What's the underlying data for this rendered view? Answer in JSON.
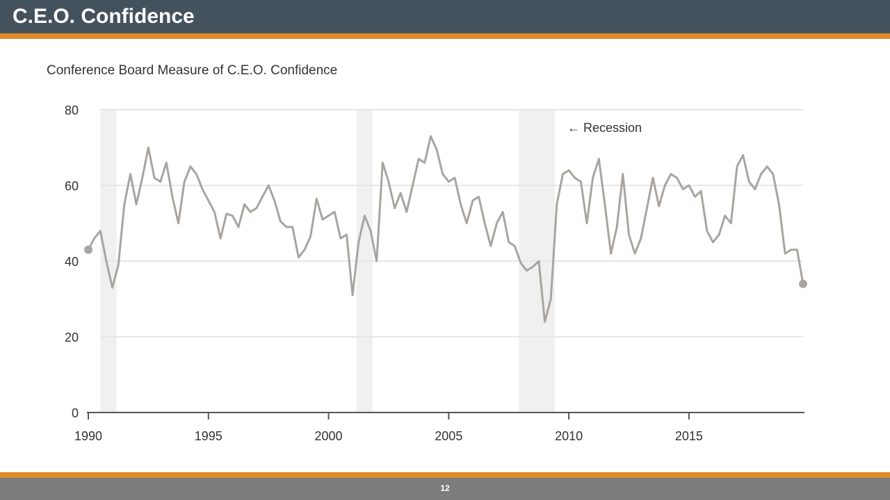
{
  "slide": {
    "title": "C.E.O. Confidence",
    "page_number": "12"
  },
  "colors": {
    "title_bar": "#44525e",
    "accent": "#dd8c27",
    "footer": "#7c7c7c",
    "line": "#a8a4a0",
    "recession_band": "#f0f0f0",
    "grid": "#e6e6e6",
    "axis": "#555555",
    "text": "#333333"
  },
  "chart_data": {
    "type": "line",
    "title": "Conference Board Measure of C.E.O. Confidence",
    "xlabel": "",
    "ylabel": "",
    "xlim": [
      1990,
      2019.75
    ],
    "ylim": [
      0,
      80
    ],
    "yticks": [
      0,
      20,
      40,
      60,
      80
    ],
    "xticks": [
      1990,
      1995,
      2000,
      2005,
      2010,
      2015
    ],
    "grid": true,
    "annotation": "← Recession",
    "recessions": [
      [
        1990.5,
        1991.17
      ],
      [
        2001.17,
        2001.83
      ],
      [
        2007.92,
        2009.42
      ]
    ],
    "series": [
      {
        "name": "C.E.O. Confidence",
        "x": [
          1990.0,
          1990.25,
          1990.5,
          1990.75,
          1991.0,
          1991.25,
          1991.5,
          1991.75,
          1992.0,
          1992.25,
          1992.5,
          1992.75,
          1993.0,
          1993.25,
          1993.5,
          1993.75,
          1994.0,
          1994.25,
          1994.5,
          1994.75,
          1995.0,
          1995.25,
          1995.5,
          1995.75,
          1996.0,
          1996.25,
          1996.5,
          1996.75,
          1997.0,
          1997.25,
          1997.5,
          1997.75,
          1998.0,
          1998.25,
          1998.5,
          1998.75,
          1999.0,
          1999.25,
          1999.5,
          1999.75,
          2000.0,
          2000.25,
          2000.5,
          2000.75,
          2001.0,
          2001.25,
          2001.5,
          2001.75,
          2002.0,
          2002.25,
          2002.5,
          2002.75,
          2003.0,
          2003.25,
          2003.5,
          2003.75,
          2004.0,
          2004.25,
          2004.5,
          2004.75,
          2005.0,
          2005.25,
          2005.5,
          2005.75,
          2006.0,
          2006.25,
          2006.5,
          2006.75,
          2007.0,
          2007.25,
          2007.5,
          2007.75,
          2008.0,
          2008.25,
          2008.5,
          2008.75,
          2009.0,
          2009.25,
          2009.5,
          2009.75,
          2010.0,
          2010.25,
          2010.5,
          2010.75,
          2011.0,
          2011.25,
          2011.5,
          2011.75,
          2012.0,
          2012.25,
          2012.5,
          2012.75,
          2013.0,
          2013.25,
          2013.5,
          2013.75,
          2014.0,
          2014.25,
          2014.5,
          2014.75,
          2015.0,
          2015.25,
          2015.5,
          2015.75,
          2016.0,
          2016.25,
          2016.5,
          2016.75,
          2017.0,
          2017.25,
          2017.5,
          2017.75,
          2018.0,
          2018.25,
          2018.5,
          2018.75,
          2019.0,
          2019.25,
          2019.5,
          2019.75
        ],
        "values": [
          43,
          46,
          48,
          40,
          33,
          39,
          55,
          63,
          55,
          62,
          70,
          62,
          61,
          66,
          57,
          50,
          61,
          65,
          63,
          59,
          56,
          53,
          46,
          52.5,
          52,
          49,
          55,
          53,
          54,
          57,
          60,
          56,
          50.5,
          49,
          49,
          41,
          43,
          46.5,
          56.5,
          51,
          52,
          53,
          46,
          47,
          31,
          45,
          52,
          48,
          40,
          66,
          61,
          54,
          58,
          53,
          60,
          67,
          66,
          73,
          69.5,
          63,
          61,
          62,
          55,
          50,
          56,
          57,
          50,
          44,
          50,
          53,
          45,
          44,
          39.5,
          37.5,
          38.5,
          40,
          24,
          30,
          55,
          63,
          64,
          62,
          61,
          50,
          62,
          67,
          55,
          42,
          49,
          63,
          47,
          42,
          46,
          54,
          62,
          54.5,
          60,
          63,
          62,
          59,
          60,
          57,
          58.5,
          48,
          45,
          47,
          52,
          50,
          65,
          68,
          61,
          59,
          63,
          65,
          63,
          55,
          42,
          43,
          43,
          34
        ]
      }
    ]
  }
}
